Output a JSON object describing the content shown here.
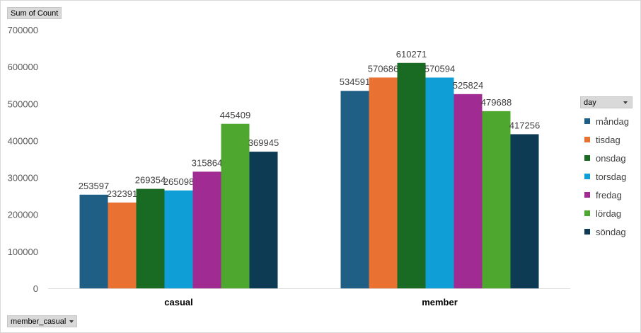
{
  "fields": {
    "values_field": "Sum of Count",
    "axis_field": "member_casual",
    "legend_field": "day"
  },
  "chart_data": {
    "type": "bar",
    "title": "",
    "xlabel": "",
    "ylabel": "",
    "categories": [
      "casual",
      "member"
    ],
    "ylim": [
      0,
      700000
    ],
    "yticks": [
      0,
      100000,
      200000,
      300000,
      400000,
      500000,
      600000,
      700000
    ],
    "grid": false,
    "legend_position": "right",
    "series": [
      {
        "name": "måndag",
        "color": "#1f5f86",
        "values": [
          253597,
          534591
        ]
      },
      {
        "name": "tisdag",
        "color": "#e97132",
        "values": [
          232391,
          570686
        ]
      },
      {
        "name": "onsdag",
        "color": "#196b24",
        "values": [
          269354,
          610271
        ]
      },
      {
        "name": "torsdag",
        "color": "#0f9ed5",
        "values": [
          265098,
          570594
        ]
      },
      {
        "name": "fredag",
        "color": "#a02b93",
        "values": [
          315864,
          525824
        ]
      },
      {
        "name": "lördag",
        "color": "#4ea72e",
        "values": [
          445409,
          479688
        ]
      },
      {
        "name": "söndag",
        "color": "#0e3b54",
        "values": [
          369945,
          417256
        ]
      }
    ]
  }
}
